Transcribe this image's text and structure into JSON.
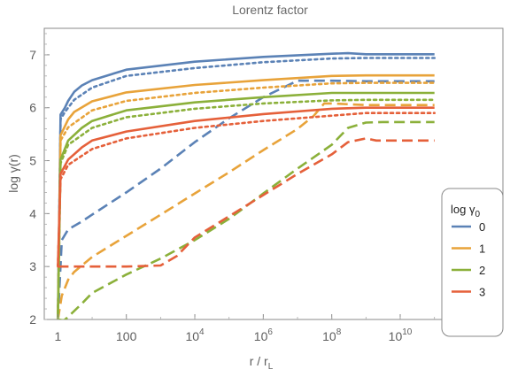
{
  "chart_data": {
    "type": "line",
    "title": "Lorentz factor",
    "xlabel": "r / r",
    "xlabel_sub": "L",
    "ylabel": "log γ(r)",
    "x_scale": "log",
    "xlim": [
      0.4,
      10000000000000
    ],
    "ylim": [
      2,
      7.5
    ],
    "x_ticks": [
      {
        "value": 1,
        "base": "1",
        "exp": ""
      },
      {
        "value": 100,
        "base": "100",
        "exp": ""
      },
      {
        "value": 10000,
        "base": "10",
        "exp": "4"
      },
      {
        "value": 1000000,
        "base": "10",
        "exp": "6"
      },
      {
        "value": 100000000,
        "base": "10",
        "exp": "8"
      },
      {
        "value": 10000000000,
        "base": "10",
        "exp": "10"
      }
    ],
    "y_ticks": [
      {
        "value": 2,
        "label": "2"
      },
      {
        "value": 3,
        "label": "3"
      },
      {
        "value": 4,
        "label": "4"
      },
      {
        "value": 5,
        "label": "5"
      },
      {
        "value": 6,
        "label": "6"
      },
      {
        "value": 7,
        "label": "7"
      }
    ],
    "grid": false,
    "legend": {
      "title": "log γ",
      "title_sub": "0",
      "placement": "bottom-right",
      "entries": [
        "0",
        "1",
        "2",
        "3"
      ]
    },
    "series": [
      {
        "color": "#5b82b6",
        "style": "solid",
        "points": [
          [
            1,
            2.0
          ],
          [
            1.2,
            5.87
          ],
          [
            1.6,
            6.0
          ],
          [
            2,
            6.13
          ],
          [
            3,
            6.3
          ],
          [
            5,
            6.42
          ],
          [
            10,
            6.52
          ],
          [
            100,
            6.72
          ],
          [
            10000,
            6.87
          ],
          [
            1000000,
            6.96
          ],
          [
            100000000,
            7.02
          ],
          [
            300000000,
            7.03
          ],
          [
            1000000000,
            7.01
          ],
          [
            10000000000,
            7.01
          ],
          [
            100000000000,
            7.01
          ]
        ]
      },
      {
        "color": "#5b82b6",
        "style": "dotted",
        "points": [
          [
            1,
            2.0
          ],
          [
            1.2,
            5.78
          ],
          [
            1.6,
            5.92
          ],
          [
            2,
            6.0
          ],
          [
            3,
            6.15
          ],
          [
            10,
            6.38
          ],
          [
            100,
            6.6
          ],
          [
            10000,
            6.75
          ],
          [
            1000000,
            6.86
          ],
          [
            100000000,
            6.93
          ],
          [
            1000000000,
            6.94
          ],
          [
            100000000000,
            6.94
          ]
        ]
      },
      {
        "color": "#5b82b6",
        "style": "dashed",
        "points": [
          [
            1,
            2.0
          ],
          [
            1.3,
            3.5
          ],
          [
            2,
            3.7
          ],
          [
            5,
            3.85
          ],
          [
            10,
            3.98
          ],
          [
            100,
            4.4
          ],
          [
            1000,
            4.85
          ],
          [
            10000,
            5.35
          ],
          [
            100000,
            5.8
          ],
          [
            1000000,
            6.2
          ],
          [
            10000000,
            6.51
          ],
          [
            100000000,
            6.51
          ],
          [
            1000000000,
            6.5
          ],
          [
            100000000000,
            6.5
          ]
        ]
      },
      {
        "color": "#e8a33a",
        "style": "solid",
        "points": [
          [
            1,
            2.0
          ],
          [
            1.2,
            5.48
          ],
          [
            1.6,
            5.65
          ],
          [
            2,
            5.78
          ],
          [
            3,
            5.92
          ],
          [
            10,
            6.12
          ],
          [
            100,
            6.29
          ],
          [
            10000,
            6.43
          ],
          [
            1000000,
            6.52
          ],
          [
            100000000,
            6.6
          ],
          [
            1000000000,
            6.61
          ],
          [
            100000000000,
            6.61
          ]
        ]
      },
      {
        "color": "#e8a33a",
        "style": "dotted",
        "points": [
          [
            1,
            2.0
          ],
          [
            1.2,
            5.38
          ],
          [
            2,
            5.63
          ],
          [
            10,
            5.95
          ],
          [
            100,
            6.13
          ],
          [
            10000,
            6.28
          ],
          [
            1000000,
            6.38
          ],
          [
            100000000,
            6.46
          ],
          [
            1000000000,
            6.47
          ],
          [
            100000000000,
            6.47
          ]
        ]
      },
      {
        "color": "#e8a33a",
        "style": "dashed",
        "points": [
          [
            1,
            2.0
          ],
          [
            1.3,
            2.45
          ],
          [
            2,
            2.75
          ],
          [
            3,
            2.9
          ],
          [
            10,
            3.18
          ],
          [
            100,
            3.58
          ],
          [
            1000,
            3.98
          ],
          [
            10000,
            4.38
          ],
          [
            100000,
            4.78
          ],
          [
            1000000,
            5.2
          ],
          [
            10000000,
            5.6
          ],
          [
            30000000,
            5.85
          ],
          [
            60000000,
            6.08
          ],
          [
            100000000,
            6.08
          ],
          [
            1000000000,
            6.05
          ],
          [
            100000000000,
            6.05
          ]
        ]
      },
      {
        "color": "#8bb03a",
        "style": "solid",
        "points": [
          [
            1,
            2.0
          ],
          [
            1.2,
            5.02
          ],
          [
            2,
            5.38
          ],
          [
            5,
            5.62
          ],
          [
            10,
            5.75
          ],
          [
            100,
            5.95
          ],
          [
            10000,
            6.1
          ],
          [
            1000000,
            6.2
          ],
          [
            100000000,
            6.28
          ],
          [
            1000000000,
            6.28
          ],
          [
            100000000000,
            6.28
          ]
        ]
      },
      {
        "color": "#8bb03a",
        "style": "dotted",
        "points": [
          [
            1,
            2.0
          ],
          [
            1.2,
            4.95
          ],
          [
            2,
            5.3
          ],
          [
            10,
            5.62
          ],
          [
            100,
            5.82
          ],
          [
            10000,
            5.98
          ],
          [
            1000000,
            6.08
          ],
          [
            100000000,
            6.14
          ],
          [
            1000000000,
            6.15
          ],
          [
            100000000000,
            6.15
          ]
        ]
      },
      {
        "color": "#8bb03a",
        "style": "dashed",
        "points": [
          [
            1,
            2.0
          ],
          [
            1.5,
            1.98
          ],
          [
            2,
            2.05
          ],
          [
            5,
            2.3
          ],
          [
            10,
            2.5
          ],
          [
            100,
            2.85
          ],
          [
            1000,
            3.15
          ],
          [
            10000,
            3.5
          ],
          [
            100000,
            3.9
          ],
          [
            1000000,
            4.38
          ],
          [
            10000000,
            4.85
          ],
          [
            100000000,
            5.3
          ],
          [
            300000000,
            5.62
          ],
          [
            1000000000,
            5.72
          ],
          [
            3000000000,
            5.73
          ],
          [
            100000000000,
            5.73
          ]
        ]
      },
      {
        "color": "#e5603a",
        "style": "solid",
        "points": [
          [
            1,
            3.0
          ],
          [
            1.2,
            4.75
          ],
          [
            2,
            5.02
          ],
          [
            5,
            5.25
          ],
          [
            10,
            5.38
          ],
          [
            100,
            5.55
          ],
          [
            10000,
            5.75
          ],
          [
            1000000,
            5.88
          ],
          [
            100000000,
            5.98
          ],
          [
            1000000000,
            6.0
          ],
          [
            100000000000,
            6.0
          ]
        ]
      },
      {
        "color": "#e5603a",
        "style": "dotted",
        "points": [
          [
            1,
            3.0
          ],
          [
            1.2,
            4.65
          ],
          [
            2,
            4.92
          ],
          [
            10,
            5.22
          ],
          [
            100,
            5.42
          ],
          [
            10000,
            5.62
          ],
          [
            1000000,
            5.75
          ],
          [
            100000000,
            5.85
          ],
          [
            1000000000,
            5.9
          ],
          [
            100000000000,
            5.9
          ]
        ]
      },
      {
        "color": "#e5603a",
        "style": "dashed",
        "points": [
          [
            1,
            3.0
          ],
          [
            10,
            3.0
          ],
          [
            100,
            3.0
          ],
          [
            1000,
            3.02
          ],
          [
            3000,
            3.2
          ],
          [
            10000,
            3.55
          ],
          [
            100000,
            3.95
          ],
          [
            1000000,
            4.35
          ],
          [
            10000000,
            4.75
          ],
          [
            100000000,
            5.12
          ],
          [
            300000000,
            5.35
          ],
          [
            1000000000,
            5.42
          ],
          [
            2000000000,
            5.38
          ],
          [
            5000000000,
            5.38
          ],
          [
            100000000000,
            5.38
          ]
        ]
      }
    ]
  }
}
